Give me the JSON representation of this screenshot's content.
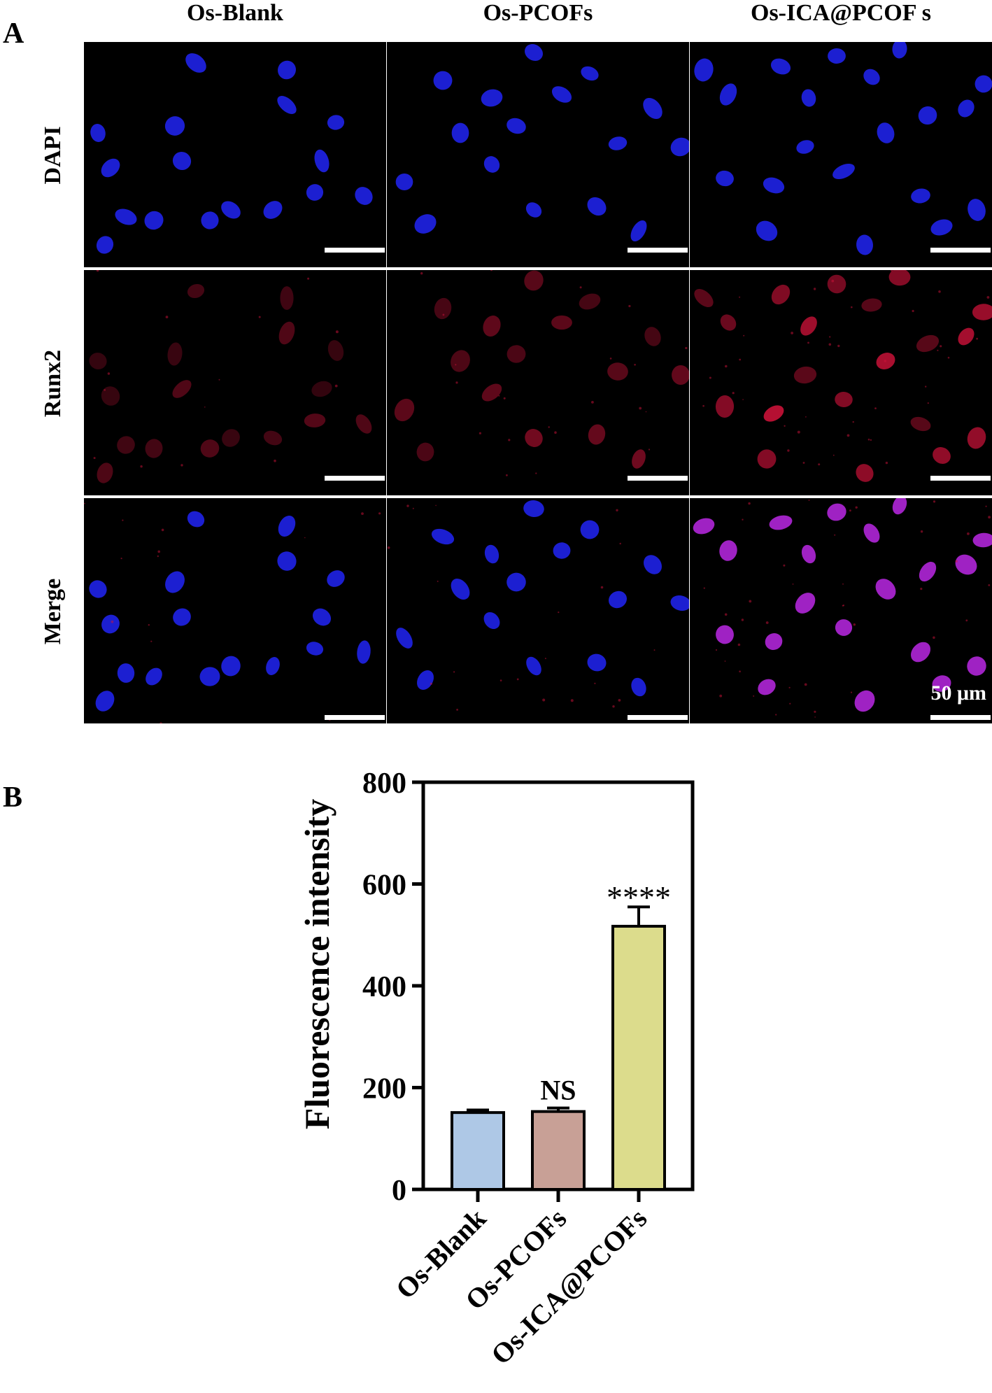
{
  "figure": {
    "panel_a_label": "A",
    "panel_b_label": "B",
    "columns": [
      "Os-Blank",
      "Os-PCOFs",
      "Os-ICA@PCOF s"
    ],
    "rows": [
      "DAPI",
      "Runx2",
      "Merge"
    ],
    "scale_bar_text": "50 μm"
  },
  "colors": {
    "dapi": "#1f22e8",
    "runx2": "#d0123a",
    "merge_overlay": "#b026d8",
    "bar_blank": "#aec8e6",
    "bar_pcofs": "#c8a096",
    "bar_ica": "#dcdc8c",
    "axis": "#000000"
  },
  "chart_data": {
    "type": "bar",
    "categories": [
      "Os-Blank",
      "Os-PCOFs",
      "Os-ICA@PCOFs"
    ],
    "values": [
      151,
      153,
      517
    ],
    "errors": [
      5,
      7,
      38
    ],
    "annotations": [
      "",
      "NS",
      "****"
    ],
    "ylabel": "Fluorescence intensity",
    "ylim": [
      0,
      800
    ],
    "yticks": [
      0,
      200,
      400,
      600,
      800
    ],
    "grid": false
  }
}
